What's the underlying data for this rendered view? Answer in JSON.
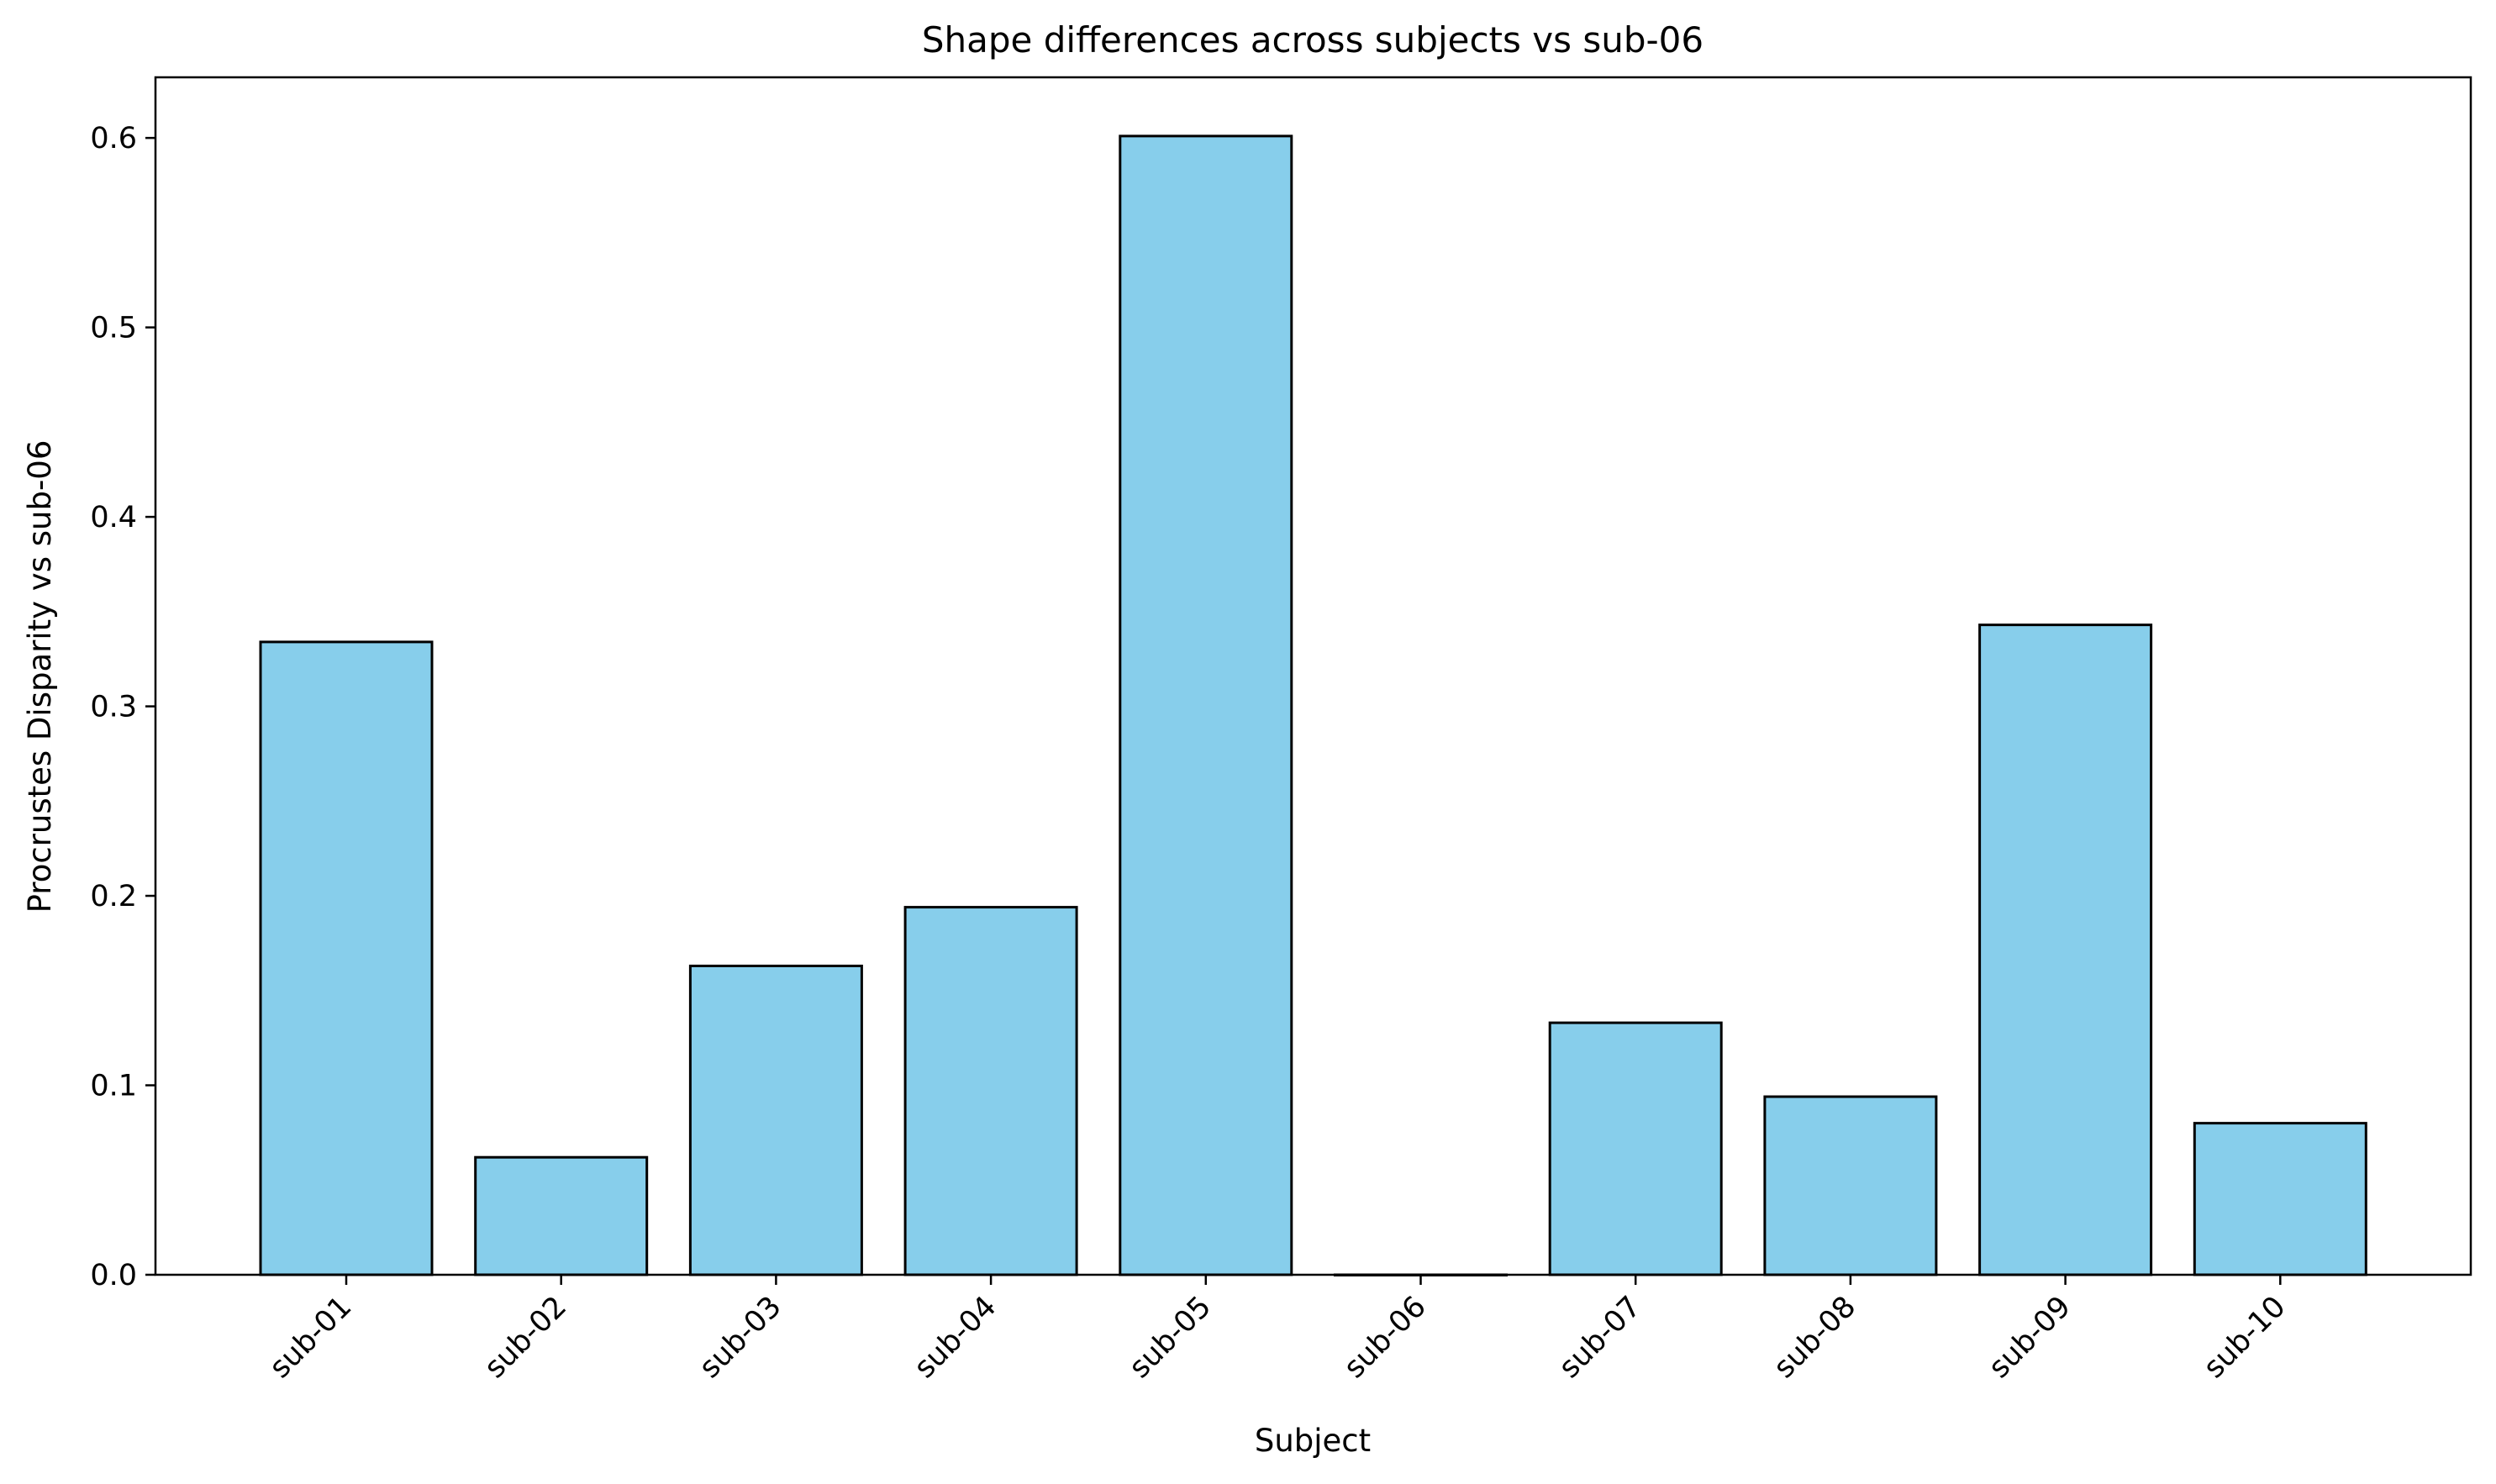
{
  "chart_data": {
    "type": "bar",
    "title": "Shape differences across subjects vs sub-06",
    "xlabel": "Subject",
    "ylabel": "Procrustes Disparity vs sub-06",
    "categories": [
      "sub-01",
      "sub-02",
      "sub-03",
      "sub-04",
      "sub-05",
      "sub-06",
      "sub-07",
      "sub-08",
      "sub-09",
      "sub-10"
    ],
    "values": [
      0.334,
      0.062,
      0.163,
      0.194,
      0.601,
      0.0,
      0.133,
      0.094,
      0.343,
      0.08
    ],
    "ylim": [
      0,
      0.632
    ],
    "yticks": [
      "0.0",
      "0.1",
      "0.2",
      "0.3",
      "0.4",
      "0.5",
      "0.6"
    ],
    "grid": false,
    "colors": {
      "bar_fill": "#87CEEB",
      "bar_edge": "#000000"
    }
  }
}
